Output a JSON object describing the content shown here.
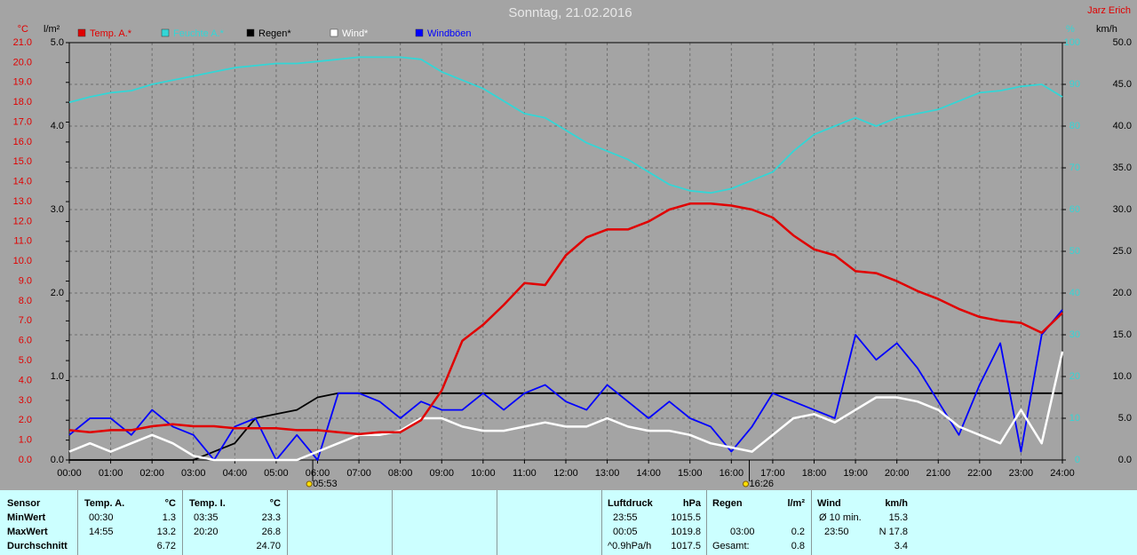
{
  "chart_data": {
    "type": "line",
    "title": "Sonntag, 21.02.2016",
    "author": "Jarz Erich",
    "y_unit": "°C",
    "y2_unit": "%",
    "y3_unit": "l/m²",
    "y4_unit": "km/h",
    "x": [
      0,
      0.5,
      1,
      1.5,
      2,
      2.5,
      3,
      3.5,
      4,
      4.5,
      5,
      5.5,
      6,
      6.5,
      7,
      7.5,
      8,
      8.5,
      9,
      9.5,
      10,
      10.5,
      11,
      11.5,
      12,
      12.5,
      13,
      13.5,
      14,
      14.5,
      15,
      15.5,
      16,
      16.5,
      17,
      17.5,
      18,
      18.5,
      19,
      19.5,
      20,
      20.5,
      21,
      21.5,
      22,
      22.5,
      23,
      23.5,
      24
    ],
    "xlim": [
      0,
      24
    ],
    "xticks": [
      {
        "value": 0,
        "label": "00:00"
      },
      {
        "value": 1,
        "label": "01:00"
      },
      {
        "value": 2,
        "label": "02:00"
      },
      {
        "value": 3,
        "label": "03:00"
      },
      {
        "value": 4,
        "label": "04:00"
      },
      {
        "value": 5,
        "label": "05:00"
      },
      {
        "value": 6,
        "label": "06:00"
      },
      {
        "value": 7,
        "label": "07:00"
      },
      {
        "value": 8,
        "label": "08:00"
      },
      {
        "value": 9,
        "label": "09:00"
      },
      {
        "value": 10,
        "label": "10:00"
      },
      {
        "value": 11,
        "label": "11:00"
      },
      {
        "value": 12,
        "label": "12:00"
      },
      {
        "value": 13,
        "label": "13:00"
      },
      {
        "value": 14,
        "label": "14:00"
      },
      {
        "value": 15,
        "label": "15:00"
      },
      {
        "value": 16,
        "label": "16:00"
      },
      {
        "value": 17,
        "label": "17:00"
      },
      {
        "value": 18,
        "label": "18:00"
      },
      {
        "value": 19,
        "label": "19:00"
      },
      {
        "value": 20,
        "label": "20:00"
      },
      {
        "value": 21,
        "label": "21:00"
      },
      {
        "value": 22,
        "label": "22:00"
      },
      {
        "value": 23,
        "label": "23:00"
      },
      {
        "value": 24,
        "label": "24:00"
      }
    ],
    "ylim": [
      0,
      21
    ],
    "yticks": [
      {
        "value": 0,
        "label": "0.0"
      },
      {
        "value": 1,
        "label": "1.0"
      },
      {
        "value": 2,
        "label": "2.0"
      },
      {
        "value": 3,
        "label": "3.0"
      },
      {
        "value": 4,
        "label": "4.0"
      },
      {
        "value": 5,
        "label": "5.0"
      },
      {
        "value": 6,
        "label": "6.0"
      },
      {
        "value": 7,
        "label": "7.0"
      },
      {
        "value": 8,
        "label": "8.0"
      },
      {
        "value": 9,
        "label": "9.0"
      },
      {
        "value": 10,
        "label": "10.0"
      },
      {
        "value": 11,
        "label": "11.0"
      },
      {
        "value": 12,
        "label": "12.0"
      },
      {
        "value": 13,
        "label": "13.0"
      },
      {
        "value": 14,
        "label": "14.0"
      },
      {
        "value": 15,
        "label": "15.0"
      },
      {
        "value": 16,
        "label": "16.0"
      },
      {
        "value": 17,
        "label": "17.0"
      },
      {
        "value": 18,
        "label": "18.0"
      },
      {
        "value": 19,
        "label": "19.0"
      },
      {
        "value": 20,
        "label": "20.0"
      },
      {
        "value": 21,
        "label": "21.0"
      }
    ],
    "y2lim": [
      0,
      100
    ],
    "y2ticks": [
      0,
      10,
      20,
      30,
      40,
      50,
      60,
      70,
      80,
      90,
      100
    ],
    "y3lim": [
      0,
      5
    ],
    "y3ticks": [
      {
        "value": 0,
        "label": "0.0"
      },
      {
        "value": 1,
        "label": "1.0"
      },
      {
        "value": 2,
        "label": "2.0"
      },
      {
        "value": 3,
        "label": "3.0"
      },
      {
        "value": 4,
        "label": "4.0"
      },
      {
        "value": 5,
        "label": "5.0"
      }
    ],
    "y4lim": [
      0,
      50
    ],
    "y4ticks": [
      {
        "value": 0,
        "label": "0.0"
      },
      {
        "value": 5,
        "label": "5.0"
      },
      {
        "value": 10,
        "label": "10.0"
      },
      {
        "value": 15,
        "label": "15.0"
      },
      {
        "value": 20,
        "label": "20.0"
      },
      {
        "value": 25,
        "label": "25.0"
      },
      {
        "value": 30,
        "label": "30.0"
      },
      {
        "value": 35,
        "label": "35.0"
      },
      {
        "value": 40,
        "label": "40.0"
      },
      {
        "value": 45,
        "label": "45.0"
      },
      {
        "value": 50,
        "label": "50.0"
      }
    ],
    "grid": true,
    "sunrise": "05:53",
    "sunset": "16:26",
    "series": [
      {
        "name": "Temp. A.*",
        "color": "#e00000",
        "axis": "y",
        "values": [
          1.5,
          1.4,
          1.5,
          1.5,
          1.7,
          1.8,
          1.7,
          1.7,
          1.6,
          1.6,
          1.6,
          1.5,
          1.5,
          1.4,
          1.3,
          1.4,
          1.4,
          2.0,
          3.5,
          6.0,
          6.8,
          7.8,
          8.9,
          8.8,
          10.3,
          11.2,
          11.6,
          11.6,
          12.0,
          12.6,
          12.9,
          12.9,
          12.8,
          12.6,
          12.2,
          11.3,
          10.6,
          10.3,
          9.5,
          9.4,
          9.0,
          8.5,
          8.1,
          7.6,
          7.2,
          7.0,
          6.9,
          6.4,
          7.4
        ]
      },
      {
        "name": "Feuchte A.*",
        "color": "#33d6d6",
        "axis": "y2",
        "values": [
          85.7,
          87,
          88,
          88.5,
          90,
          91,
          92,
          93,
          94,
          94.5,
          95,
          95,
          95.5,
          96,
          96.5,
          96.5,
          96.5,
          96,
          93,
          91,
          89,
          86,
          83,
          82,
          79,
          76,
          74,
          72,
          69,
          66,
          64.5,
          64,
          65,
          67,
          69,
          74,
          78,
          80,
          82,
          80,
          82,
          83,
          84,
          86,
          88,
          88.5,
          89.5,
          90,
          87
        ]
      },
      {
        "name": "Regen*",
        "color": "#000000",
        "axis": "y3",
        "values": [
          0,
          0,
          0,
          0,
          0,
          0,
          0,
          0.1,
          0.2,
          0.5,
          0.55,
          0.6,
          0.75,
          0.8,
          0.8,
          0.8,
          0.8,
          0.8,
          0.8,
          0.8,
          0.8,
          0.8,
          0.8,
          0.8,
          0.8,
          0.8,
          0.8,
          0.8,
          0.8,
          0.8,
          0.8,
          0.8,
          0.8,
          0.8,
          0.8,
          0.8,
          0.8,
          0.8,
          0.8,
          0.8,
          0.8,
          0.8,
          0.8,
          0.8,
          0.8,
          0.8,
          0.8,
          0.8,
          0.8
        ]
      },
      {
        "name": "Wind*",
        "color": "#ffffff",
        "axis": "y4",
        "values": [
          1,
          2,
          1,
          2,
          3,
          2,
          0.5,
          0,
          0,
          0,
          0,
          0,
          1,
          2,
          3,
          3,
          3.5,
          5,
          5,
          4,
          3.5,
          3.5,
          4,
          4.5,
          4,
          4,
          5,
          4,
          3.5,
          3.5,
          3,
          2,
          1.5,
          1,
          3,
          5,
          5.5,
          4.5,
          6,
          7.5,
          7.5,
          7,
          6,
          4,
          3,
          2,
          6,
          2,
          13
        ]
      },
      {
        "name": "Windböen",
        "color": "#0000ff",
        "axis": "y4",
        "values": [
          3,
          5,
          5,
          3,
          6,
          4,
          3,
          0,
          4,
          5,
          0,
          3,
          0,
          8,
          8,
          7,
          5,
          7,
          6,
          6,
          8,
          6,
          8,
          9,
          7,
          6,
          9,
          7,
          5,
          7,
          5,
          4,
          1,
          4,
          8,
          7,
          6,
          5,
          15,
          12,
          14,
          11,
          7,
          3,
          9,
          14,
          1,
          15,
          18
        ]
      }
    ]
  },
  "table": {
    "sensor": {
      "header": "Sensor",
      "rows": [
        "MinWert",
        "MaxWert",
        "Durchschnitt"
      ]
    },
    "temp_a": {
      "header": "Temp. A.",
      "unit": "°C",
      "min_time": "00:30",
      "min": "1.3",
      "max_time": "14:55",
      "max": "13.2",
      "avg": "6.72"
    },
    "temp_i": {
      "header": "Temp. I.",
      "unit": "°C",
      "min_time": "03:35",
      "min": "23.3",
      "max_time": "20:20",
      "max": "26.8",
      "avg": "24.70"
    },
    "pressure": {
      "header": "Luftdruck",
      "unit": "hPa",
      "min_time": "23:55",
      "min": "1015.5",
      "max_time": "00:05",
      "max": "1019.8",
      "trend": "^0.9hPa/h",
      "avg": "1017.5"
    },
    "rain": {
      "header": "Regen",
      "unit": "l/m²",
      "max_time": "03:00",
      "max": "0.2",
      "total_label": "Gesamt:",
      "total": "0.8"
    },
    "wind": {
      "header": "Wind",
      "unit": "km/h",
      "avg_label": "Ø 10 min.",
      "avg10": "15.3",
      "max_time": "23:50",
      "max": "N 17.8",
      "avg": "3.4"
    }
  }
}
